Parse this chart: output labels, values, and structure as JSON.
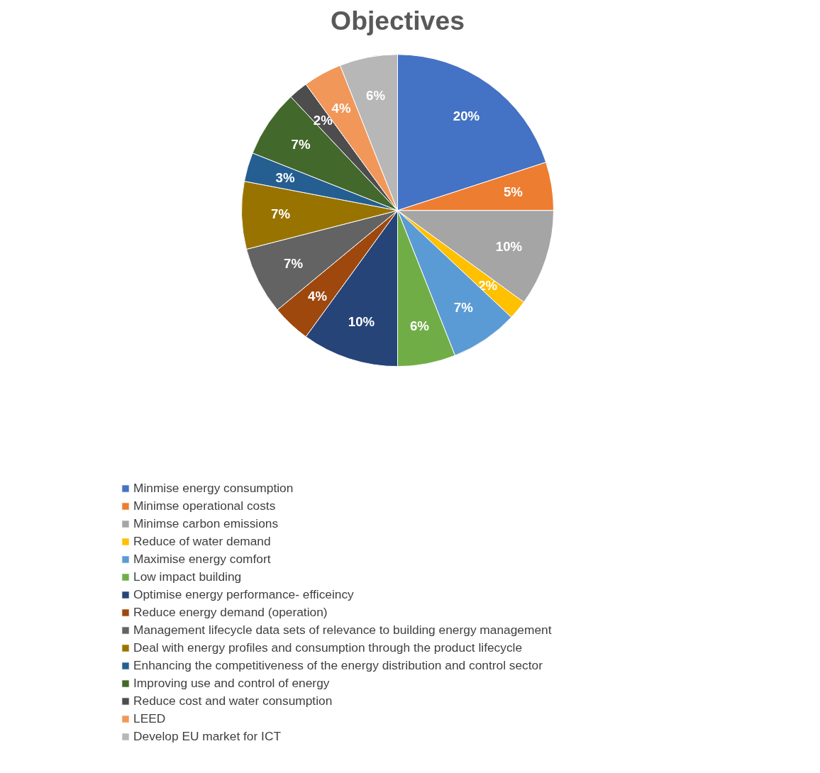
{
  "chart_data": {
    "type": "pie",
    "title": "Objectives",
    "categories": [
      "Minmise energy consumption",
      "Minimse operational costs",
      "Minimse carbon emissions",
      "Reduce of water demand",
      "Maximise energy comfort",
      "Low impact building",
      "Optimise energy performance- efficeincy",
      "Reduce energy demand (operation)",
      "Management lifecycle data sets of relevance to building energy management",
      "Deal with energy profiles and consumption through the product lifecycle",
      "Enhancing the competitiveness of the energy distribution and control sector",
      "Improving use and control of energy",
      "Reduce cost and water consumption",
      "LEED",
      "Develop EU market for ICT"
    ],
    "values": [
      20,
      5,
      10,
      2,
      7,
      6,
      10,
      4,
      7,
      7,
      3,
      7,
      2,
      4,
      6
    ],
    "colors": [
      "#4472c4",
      "#ed7d31",
      "#a5a5a5",
      "#ffc000",
      "#5b9bd5",
      "#70ad47",
      "#264478",
      "#9e480e",
      "#636363",
      "#997300",
      "#255e91",
      "#43682b",
      "#4d4d4d",
      "#f1975a",
      "#b7b7b7"
    ],
    "value_labels": [
      "20%",
      "5%",
      "10%",
      "2%",
      "7%",
      "6%",
      "10%",
      "4%",
      "7%",
      "7%",
      "3%",
      "7%",
      "2%",
      "4%",
      "6%"
    ],
    "legend": "bottom"
  }
}
